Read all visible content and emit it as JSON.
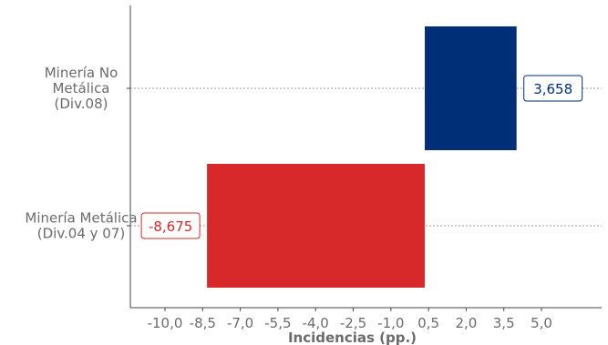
{
  "chart_data": {
    "type": "bar",
    "orientation": "horizontal",
    "style": "waterfall",
    "categories": [
      "Minería No Metálica (Div.08)",
      "Minería Metálica (Div.04 y 07)"
    ],
    "category_label_lines": [
      [
        "Minería No",
        "Metálica",
        "(Div.08)"
      ],
      [
        "Minería Metálica",
        "(Div.04 y 07)"
      ]
    ],
    "values": [
      3.658,
      -8.675
    ],
    "bar_ranges": [
      [
        0.35,
        4.008
      ],
      [
        -8.325,
        0.35
      ]
    ],
    "data_labels": [
      "3,658",
      "-8,675"
    ],
    "colors": [
      "#002f78",
      "#d7282a"
    ],
    "xlabel": "Incidencias (pp.)",
    "xticks": [
      -10.0,
      -8.5,
      -7.0,
      -5.5,
      -4.0,
      -2.5,
      -1.0,
      0.5,
      2.0,
      3.5,
      5.0
    ],
    "xtick_labels": [
      "-10,0",
      "-8,5",
      "-7,0",
      "-5,5",
      "-4,0",
      "-2,5",
      "-1,0",
      "0,5",
      "2,0",
      "3,5",
      "5,0"
    ],
    "xlim": [
      -11.0,
      8.5
    ],
    "grid": "dotted horizontal line at each category"
  }
}
